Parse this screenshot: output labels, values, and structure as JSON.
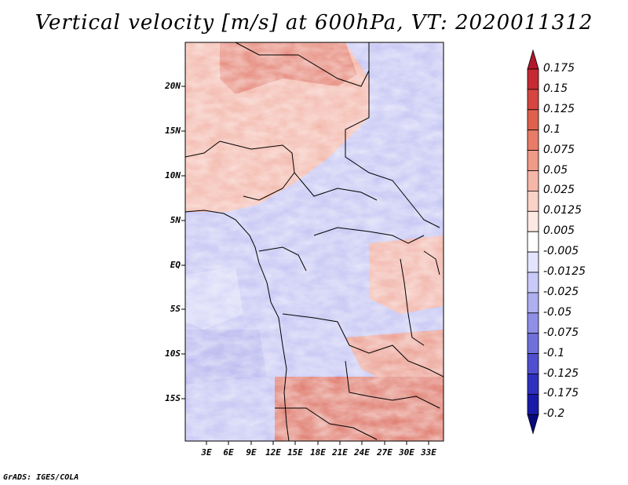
{
  "title": "Vertical velocity [m/s] at 600hPa, VT: 2020011312",
  "credit": "GrADS: IGES/COLA",
  "map": {
    "lat_ticks": [
      "20N",
      "15N",
      "10N",
      "5N",
      "EQ",
      "5S",
      "10S",
      "15S"
    ],
    "lon_ticks": [
      "3E",
      "6E",
      "9E",
      "12E",
      "15E",
      "18E",
      "21E",
      "24E",
      "27E",
      "30E",
      "33E"
    ]
  },
  "colorbar": {
    "labels": [
      "0.175",
      "0.15",
      "0.125",
      "0.1",
      "0.075",
      "0.05",
      "0.025",
      "0.0125",
      "0.005",
      "-0.005",
      "-0.0125",
      "-0.025",
      "-0.05",
      "-0.075",
      "-0.1",
      "-0.125",
      "-0.175",
      "-0.2"
    ],
    "colors": [
      "#b2182b",
      "#c62a33",
      "#d6453f",
      "#e0604e",
      "#e97c68",
      "#f09a88",
      "#f6b7a9",
      "#fad2c8",
      "#fde9e4",
      "#ffffff",
      "#e4e4ff",
      "#cacaf8",
      "#aeaef0",
      "#8f8fe8",
      "#7070dd",
      "#4f4fcf",
      "#3030bf",
      "#1a1aa8",
      "#0a0a80"
    ]
  }
}
